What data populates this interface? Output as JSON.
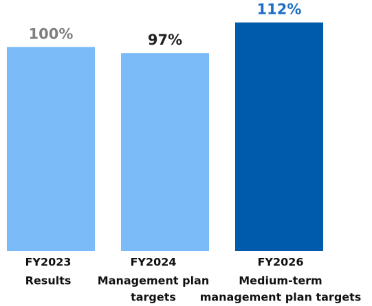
{
  "chart_data": {
    "type": "bar",
    "categories": [
      [
        "FY2023",
        "Results"
      ],
      [
        "FY2024",
        "Management plan",
        "targets"
      ],
      [
        "FY2026",
        "Medium-term",
        "management plan targets"
      ]
    ],
    "values": [
      100,
      97,
      112
    ],
    "value_labels": [
      "100%",
      "97%",
      "112%"
    ],
    "colors": [
      "#7bbcf8",
      "#7bbcf8",
      "#005bac"
    ],
    "label_colors": [
      "#7f7f7f",
      "#222222",
      "#1b6fc6"
    ],
    "ylim": [
      0,
      123
    ]
  }
}
